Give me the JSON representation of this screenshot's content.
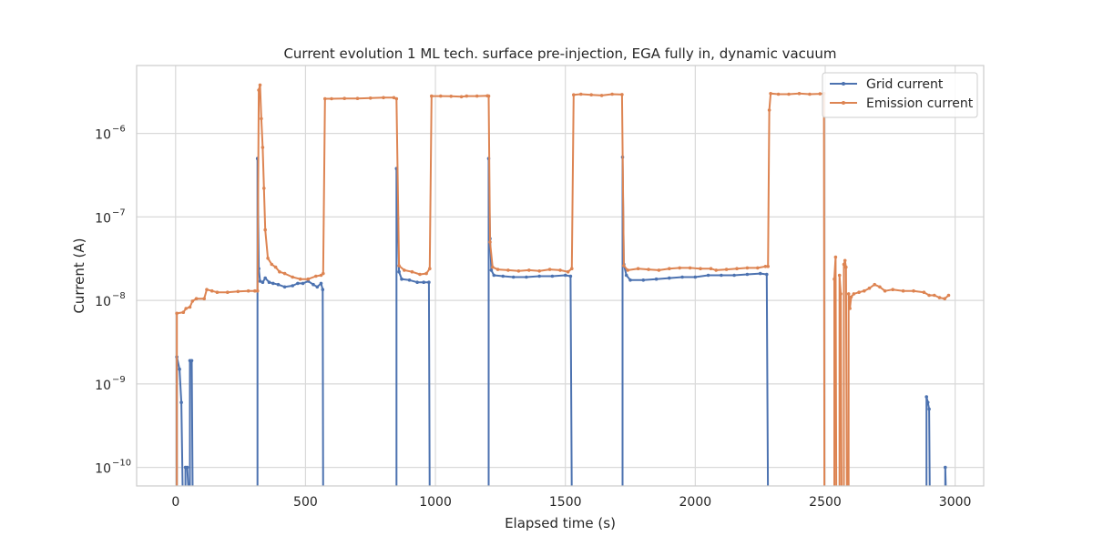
{
  "chart_data": {
    "type": "line",
    "title": "Current evolution 1 ML tech. surface pre-injection, EGA fully in, dynamic vacuum",
    "xlabel": "Elapsed time (s)",
    "ylabel": "Current (A)",
    "xlim": [
      -150,
      3110
    ],
    "ylim": [
      6e-11,
      6.5e-06
    ],
    "yscale": "log",
    "x_ticks": [
      0,
      500,
      1000,
      1500,
      2000,
      2500,
      3000
    ],
    "x_tick_labels": [
      "0",
      "500",
      "1000",
      "1500",
      "2000",
      "2500",
      "3000"
    ],
    "y_ticks": [
      1e-10,
      1e-09,
      1e-08,
      1e-07,
      1e-06
    ],
    "y_tick_labels": [
      {
        "base": "10",
        "exp": "−10"
      },
      {
        "base": "10",
        "exp": "−9"
      },
      {
        "base": "10",
        "exp": "−8"
      },
      {
        "base": "10",
        "exp": "−7"
      },
      {
        "base": "10",
        "exp": "−6"
      }
    ],
    "grid": true,
    "legend_position": "top-right",
    "series": [
      {
        "name": "Grid current",
        "color": "#4c72b0",
        "points": [
          [
            5,
            2.1e-09
          ],
          [
            15,
            1.5e-09
          ],
          [
            22,
            6e-10
          ],
          [
            28,
            null
          ],
          [
            38,
            1e-10
          ],
          [
            45,
            1e-10
          ],
          [
            52,
            null
          ],
          [
            55,
            1.9e-09
          ],
          [
            62,
            1.9e-09
          ],
          [
            66,
            null
          ],
          [
            315,
            null
          ],
          [
            315,
            5e-07
          ],
          [
            320,
            2.4e-08
          ],
          [
            325,
            1.7e-08
          ],
          [
            335,
            1.65e-08
          ],
          [
            345,
            1.85e-08
          ],
          [
            360,
            1.65e-08
          ],
          [
            375,
            1.6e-08
          ],
          [
            395,
            1.55e-08
          ],
          [
            420,
            1.45e-08
          ],
          [
            450,
            1.5e-08
          ],
          [
            470,
            1.6e-08
          ],
          [
            490,
            1.6e-08
          ],
          [
            510,
            1.7e-08
          ],
          [
            530,
            1.55e-08
          ],
          [
            545,
            1.45e-08
          ],
          [
            560,
            1.6e-08
          ],
          [
            566,
            1.35e-08
          ],
          [
            568,
            null
          ],
          [
            850,
            null
          ],
          [
            850,
            3.8e-07
          ],
          [
            855,
            9.5e-08
          ],
          [
            860,
            2.2e-08
          ],
          [
            870,
            1.8e-08
          ],
          [
            900,
            1.75e-08
          ],
          [
            930,
            1.65e-08
          ],
          [
            955,
            1.65e-08
          ],
          [
            975,
            1.65e-08
          ],
          [
            978,
            null
          ],
          [
            1205,
            null
          ],
          [
            1205,
            5e-07
          ],
          [
            1210,
            5.5e-08
          ],
          [
            1215,
            2.3e-08
          ],
          [
            1225,
            2e-08
          ],
          [
            1260,
            1.95e-08
          ],
          [
            1300,
            1.9e-08
          ],
          [
            1350,
            1.9e-08
          ],
          [
            1400,
            1.95e-08
          ],
          [
            1450,
            1.95e-08
          ],
          [
            1500,
            2e-08
          ],
          [
            1520,
            1.95e-08
          ],
          [
            1525,
            null
          ],
          [
            1720,
            null
          ],
          [
            1720,
            5.2e-07
          ],
          [
            1725,
            2.7e-08
          ],
          [
            1735,
            2e-08
          ],
          [
            1750,
            1.75e-08
          ],
          [
            1800,
            1.75e-08
          ],
          [
            1850,
            1.8e-08
          ],
          [
            1900,
            1.85e-08
          ],
          [
            1950,
            1.9e-08
          ],
          [
            2000,
            1.9e-08
          ],
          [
            2050,
            2e-08
          ],
          [
            2100,
            2e-08
          ],
          [
            2150,
            2e-08
          ],
          [
            2200,
            2.05e-08
          ],
          [
            2250,
            2.1e-08
          ],
          [
            2275,
            2.05e-08
          ],
          [
            2280,
            null
          ],
          [
            2890,
            null
          ],
          [
            2890,
            7e-10
          ],
          [
            2895,
            6e-10
          ],
          [
            2900,
            5e-10
          ],
          [
            2903,
            null
          ],
          [
            2962,
            1e-10
          ],
          [
            2966,
            null
          ]
        ]
      },
      {
        "name": "Emission current",
        "color": "#dd8452",
        "points": [
          [
            5,
            7e-09
          ],
          [
            30,
            7.2e-09
          ],
          [
            40,
            8e-09
          ],
          [
            55,
            8.3e-09
          ],
          [
            65,
            9.8e-09
          ],
          [
            80,
            1.05e-08
          ],
          [
            110,
            1.05e-08
          ],
          [
            120,
            1.35e-08
          ],
          [
            140,
            1.3e-08
          ],
          [
            160,
            1.25e-08
          ],
          [
            200,
            1.25e-08
          ],
          [
            240,
            1.28e-08
          ],
          [
            280,
            1.3e-08
          ],
          [
            305,
            1.3e-08
          ],
          [
            315,
            1.3e-08
          ],
          [
            320,
            3.3e-06
          ],
          [
            325,
            3.8e-06
          ],
          [
            330,
            1.5e-06
          ],
          [
            335,
            6.8e-07
          ],
          [
            340,
            2.2e-07
          ],
          [
            345,
            7e-08
          ],
          [
            355,
            3.2e-08
          ],
          [
            370,
            2.7e-08
          ],
          [
            385,
            2.5e-08
          ],
          [
            400,
            2.2e-08
          ],
          [
            420,
            2.1e-08
          ],
          [
            450,
            1.9e-08
          ],
          [
            480,
            1.8e-08
          ],
          [
            510,
            1.8e-08
          ],
          [
            540,
            1.95e-08
          ],
          [
            560,
            2e-08
          ],
          [
            568,
            2.1e-08
          ],
          [
            575,
            2.6e-06
          ],
          [
            600,
            2.6e-06
          ],
          [
            650,
            2.62e-06
          ],
          [
            700,
            2.62e-06
          ],
          [
            750,
            2.65e-06
          ],
          [
            800,
            2.68e-06
          ],
          [
            840,
            2.68e-06
          ],
          [
            850,
            2.6e-06
          ],
          [
            860,
            2.6e-08
          ],
          [
            880,
            2.3e-08
          ],
          [
            910,
            2.2e-08
          ],
          [
            940,
            2.05e-08
          ],
          [
            965,
            2.1e-08
          ],
          [
            978,
            2.4e-08
          ],
          [
            985,
            2.8e-06
          ],
          [
            1020,
            2.8e-06
          ],
          [
            1060,
            2.78e-06
          ],
          [
            1100,
            2.75e-06
          ],
          [
            1120,
            2.8e-06
          ],
          [
            1160,
            2.8e-06
          ],
          [
            1200,
            2.82e-06
          ],
          [
            1205,
            2.8e-06
          ],
          [
            1210,
            5e-08
          ],
          [
            1220,
            2.5e-08
          ],
          [
            1240,
            2.35e-08
          ],
          [
            1280,
            2.3e-08
          ],
          [
            1320,
            2.25e-08
          ],
          [
            1360,
            2.3e-08
          ],
          [
            1400,
            2.25e-08
          ],
          [
            1440,
            2.35e-08
          ],
          [
            1480,
            2.3e-08
          ],
          [
            1510,
            2.2e-08
          ],
          [
            1525,
            2.4e-08
          ],
          [
            1532,
            2.9e-06
          ],
          [
            1560,
            2.95e-06
          ],
          [
            1600,
            2.9e-06
          ],
          [
            1640,
            2.85e-06
          ],
          [
            1680,
            2.95e-06
          ],
          [
            1718,
            2.92e-06
          ],
          [
            1725,
            2.6e-08
          ],
          [
            1740,
            2.3e-08
          ],
          [
            1780,
            2.4e-08
          ],
          [
            1820,
            2.35e-08
          ],
          [
            1860,
            2.3e-08
          ],
          [
            1900,
            2.4e-08
          ],
          [
            1940,
            2.45e-08
          ],
          [
            1980,
            2.45e-08
          ],
          [
            2020,
            2.4e-08
          ],
          [
            2060,
            2.4e-08
          ],
          [
            2080,
            2.3e-08
          ],
          [
            2120,
            2.35e-08
          ],
          [
            2160,
            2.4e-08
          ],
          [
            2200,
            2.45e-08
          ],
          [
            2240,
            2.45e-08
          ],
          [
            2270,
            2.55e-08
          ],
          [
            2280,
            2.55e-08
          ],
          [
            2285,
            1.9e-06
          ],
          [
            2290,
            3e-06
          ],
          [
            2320,
            2.95e-06
          ],
          [
            2360,
            2.95e-06
          ],
          [
            2400,
            3e-06
          ],
          [
            2440,
            2.95e-06
          ],
          [
            2480,
            2.98e-06
          ],
          [
            2495,
            3e-06
          ],
          [
            2497,
            null
          ],
          [
            2535,
            1.8e-08
          ],
          [
            2540,
            3.3e-08
          ],
          [
            2543,
            null
          ],
          [
            2555,
            2e-08
          ],
          [
            2560,
            1.2e-08
          ],
          [
            2563,
            null
          ],
          [
            2572,
            2.7e-08
          ],
          [
            2576,
            3e-08
          ],
          [
            2580,
            2.5e-08
          ],
          [
            2584,
            null
          ],
          [
            2590,
            1.2e-08
          ],
          [
            2595,
            8e-09
          ],
          [
            2600,
            1.1e-08
          ],
          [
            2610,
            1.2e-08
          ],
          [
            2630,
            1.25e-08
          ],
          [
            2650,
            1.3e-08
          ],
          [
            2670,
            1.4e-08
          ],
          [
            2690,
            1.55e-08
          ],
          [
            2710,
            1.45e-08
          ],
          [
            2730,
            1.3e-08
          ],
          [
            2760,
            1.35e-08
          ],
          [
            2800,
            1.3e-08
          ],
          [
            2840,
            1.3e-08
          ],
          [
            2880,
            1.25e-08
          ],
          [
            2900,
            1.15e-08
          ],
          [
            2920,
            1.15e-08
          ],
          [
            2940,
            1.08e-08
          ],
          [
            2960,
            1.05e-08
          ],
          [
            2975,
            1.15e-08
          ]
        ]
      }
    ]
  }
}
